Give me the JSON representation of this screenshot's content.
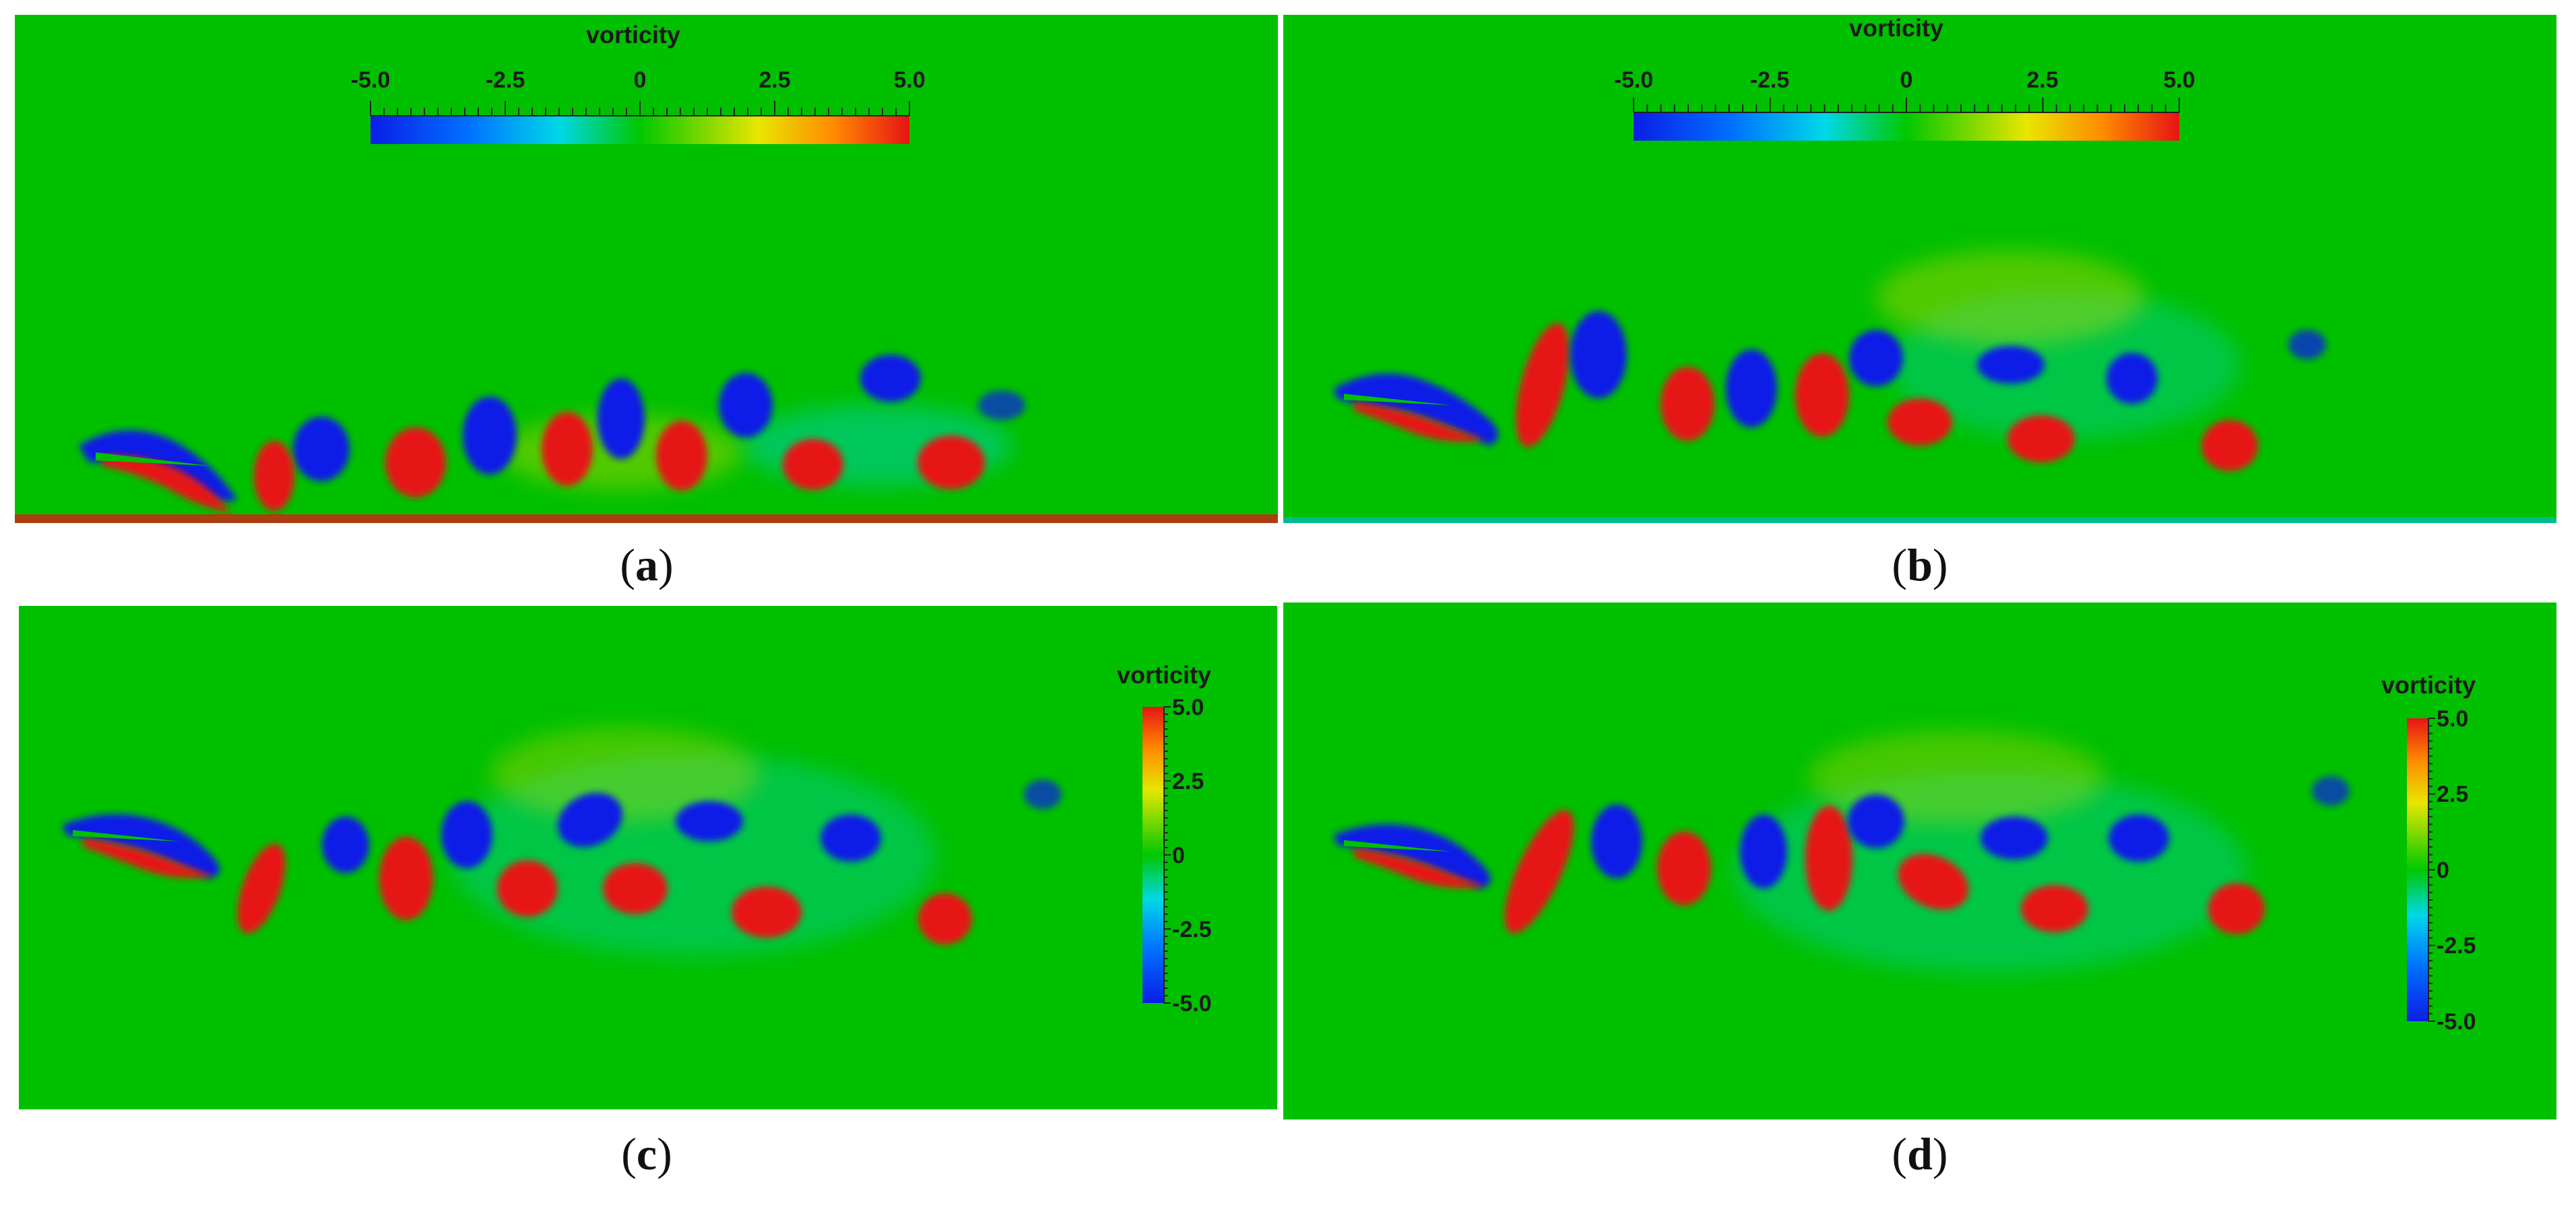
{
  "figure": {
    "colorbar": {
      "title": "vorticity",
      "ticks": [
        "-5.0",
        "-2.5",
        "0",
        "2.5",
        "5.0"
      ],
      "range": [
        -5.0,
        5.0
      ],
      "colormap": [
        "#0a1ee6",
        "#00c8ff",
        "#00c800",
        "#f0e600",
        "#ff6400",
        "#e61414"
      ]
    },
    "background_color": "#00c000",
    "panels": [
      {
        "label": "a",
        "caption_open": "(",
        "caption_close": ")",
        "colorbar_orientation": "horizontal"
      },
      {
        "label": "b",
        "caption_open": "(",
        "caption_close": ")",
        "colorbar_orientation": "horizontal"
      },
      {
        "label": "c",
        "caption_open": "(",
        "caption_close": ")",
        "colorbar_orientation": "vertical"
      },
      {
        "label": "d",
        "caption_open": "(",
        "caption_close": ")",
        "colorbar_orientation": "vertical"
      }
    ]
  }
}
